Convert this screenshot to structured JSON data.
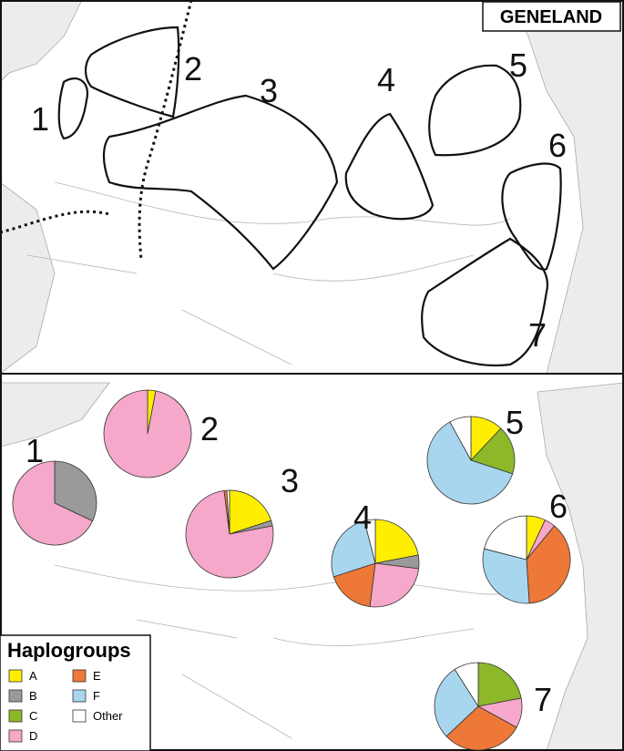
{
  "geneland_panel": {
    "title": "GENELAND",
    "clusters": [
      "1",
      "2",
      "3",
      "4",
      "5",
      "6",
      "7"
    ]
  },
  "pie_panel": {
    "legend": {
      "title": "Haplogroups",
      "items": [
        {
          "name": "A",
          "color": "#ffee00"
        },
        {
          "name": "B",
          "color": "#9a9a9a"
        },
        {
          "name": "C",
          "color": "#8cb82a"
        },
        {
          "name": "D",
          "color": "#f5a8c9"
        },
        {
          "name": "E",
          "color": "#ee7838"
        },
        {
          "name": "F",
          "color": "#a8d6ef"
        },
        {
          "name": "Other",
          "color": "#ffffff"
        }
      ]
    },
    "pies": [
      {
        "label": "1",
        "values": [
          0,
          32,
          0,
          68,
          0,
          0,
          0
        ]
      },
      {
        "label": "2",
        "values": [
          3,
          0,
          0,
          97,
          0,
          0,
          0
        ]
      },
      {
        "label": "3",
        "values": [
          20,
          2,
          0,
          76,
          1,
          0,
          1
        ]
      },
      {
        "label": "4",
        "values": [
          22,
          5,
          0,
          25,
          18,
          26,
          4
        ]
      },
      {
        "label": "5",
        "values": [
          12,
          0,
          18,
          0,
          0,
          62,
          8
        ]
      },
      {
        "label": "6",
        "values": [
          7,
          0,
          0,
          4,
          38,
          30,
          21
        ]
      },
      {
        "label": "7",
        "values": [
          0,
          0,
          22,
          11,
          30,
          28,
          9
        ]
      }
    ]
  }
}
